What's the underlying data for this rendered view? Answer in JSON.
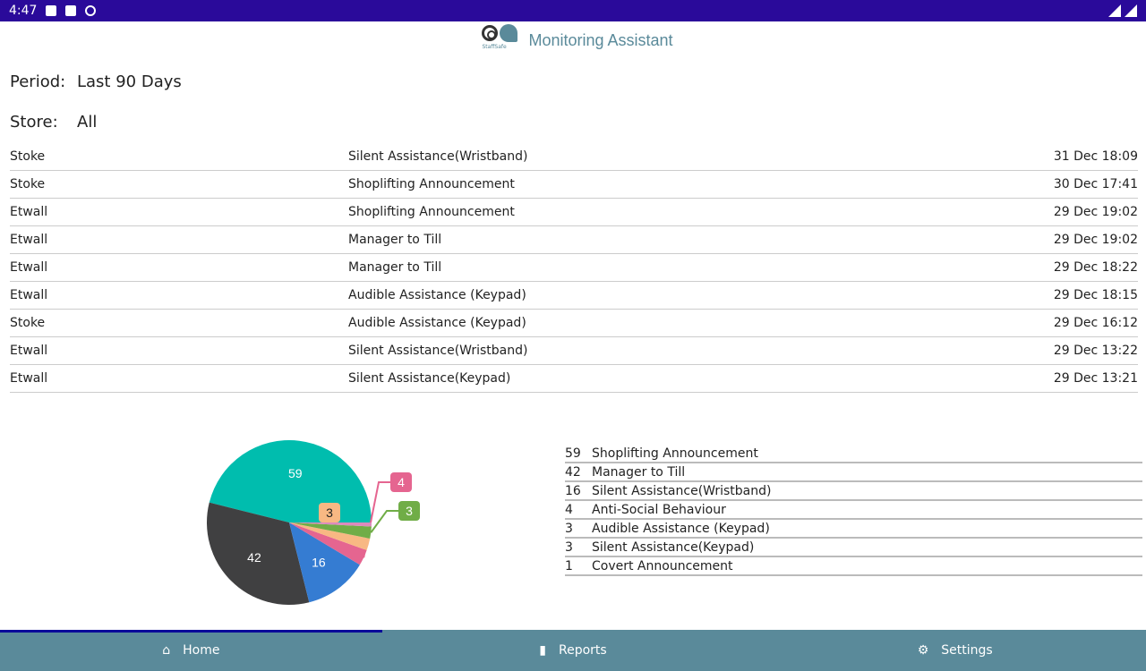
{
  "status_bar": {
    "time": "4:47"
  },
  "header": {
    "title": "Monitoring Assistant",
    "logo_text": "StaffSafe"
  },
  "filters": {
    "period_label": "Period:",
    "period_value": "Last 90 Days",
    "store_label": "Store:",
    "store_value": "All"
  },
  "events": [
    {
      "store": "Stoke",
      "type": "Silent Assistance(Wristband)",
      "time": "31 Dec 18:09"
    },
    {
      "store": "Stoke",
      "type": "Shoplifting Announcement",
      "time": "30 Dec 17:41"
    },
    {
      "store": "Etwall",
      "type": "Shoplifting Announcement",
      "time": "29 Dec 19:02"
    },
    {
      "store": "Etwall",
      "type": "Manager to Till",
      "time": "29 Dec 19:02"
    },
    {
      "store": "Etwall",
      "type": "Manager to Till",
      "time": "29 Dec 18:22"
    },
    {
      "store": "Etwall",
      "type": "Audible Assistance (Keypad)",
      "time": "29 Dec 18:15"
    },
    {
      "store": "Stoke",
      "type": "Audible Assistance (Keypad)",
      "time": "29 Dec 16:12"
    },
    {
      "store": "Etwall",
      "type": "Silent Assistance(Wristband)",
      "time": "29 Dec 13:22"
    },
    {
      "store": "Etwall",
      "type": "Silent Assistance(Keypad)",
      "time": "29 Dec 13:21"
    }
  ],
  "chart_data": {
    "type": "pie",
    "categories": [
      "Shoplifting Announcement",
      "Manager to Till",
      "Silent Assistance(Wristband)",
      "Anti-Social Behaviour",
      "Audible Assistance (Keypad)",
      "Silent Assistance(Keypad)",
      "Covert Announcement"
    ],
    "values": [
      59,
      42,
      16,
      4,
      3,
      3,
      1
    ],
    "labels": [
      "59",
      "42",
      "16",
      "4",
      "3",
      "3",
      "1"
    ],
    "colors": [
      "#00bdae",
      "#404041",
      "#357cd2",
      "#e56590",
      "#f8b883",
      "#70ad47",
      "#dd8abd"
    ]
  },
  "nav": {
    "home": "Home",
    "reports": "Reports",
    "settings": "Settings"
  }
}
